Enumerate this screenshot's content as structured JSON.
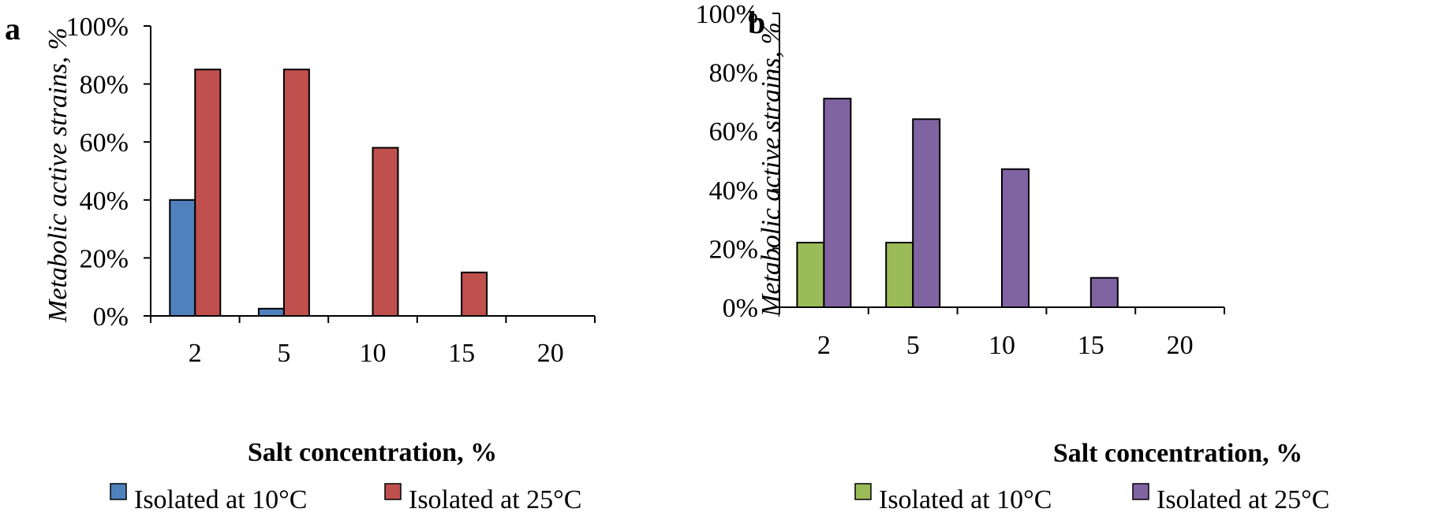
{
  "chart_data": [
    {
      "type": "bar",
      "panel_label": "a",
      "categories": [
        "2",
        "5",
        "10",
        "15",
        "20"
      ],
      "series": [
        {
          "name": "Isolated at 10°C",
          "values": [
            40,
            2.5,
            0,
            0,
            0
          ],
          "color": "#4F81BD"
        },
        {
          "name": "Isolated at 25°C",
          "values": [
            85,
            85,
            58,
            15,
            0
          ],
          "color": "#C0504D"
        }
      ],
      "xlabel": "Salt concentration, %",
      "ylabel": "Metabolic active strains, %",
      "ylim": [
        0,
        100
      ],
      "yticks": [
        "0%",
        "20%",
        "40%",
        "60%",
        "80%",
        "100%"
      ],
      "grid": false,
      "legend_position": "bottom"
    },
    {
      "type": "bar",
      "panel_label": "b",
      "categories": [
        "2",
        "5",
        "10",
        "15",
        "20"
      ],
      "series": [
        {
          "name": "Isolated at 10°C",
          "values": [
            22,
            22,
            0,
            0,
            0
          ],
          "color": "#9BBB59"
        },
        {
          "name": "Isolated at 25°C",
          "values": [
            71,
            64,
            47,
            10,
            0
          ],
          "color": "#8064A2"
        }
      ],
      "xlabel": "Salt concentration, %",
      "ylabel": "Metabolic active strains, %",
      "ylim": [
        0,
        100
      ],
      "yticks": [
        "0%",
        "20%",
        "40%",
        "60%",
        "80%",
        "100%"
      ],
      "grid": false,
      "legend_position": "bottom"
    }
  ]
}
